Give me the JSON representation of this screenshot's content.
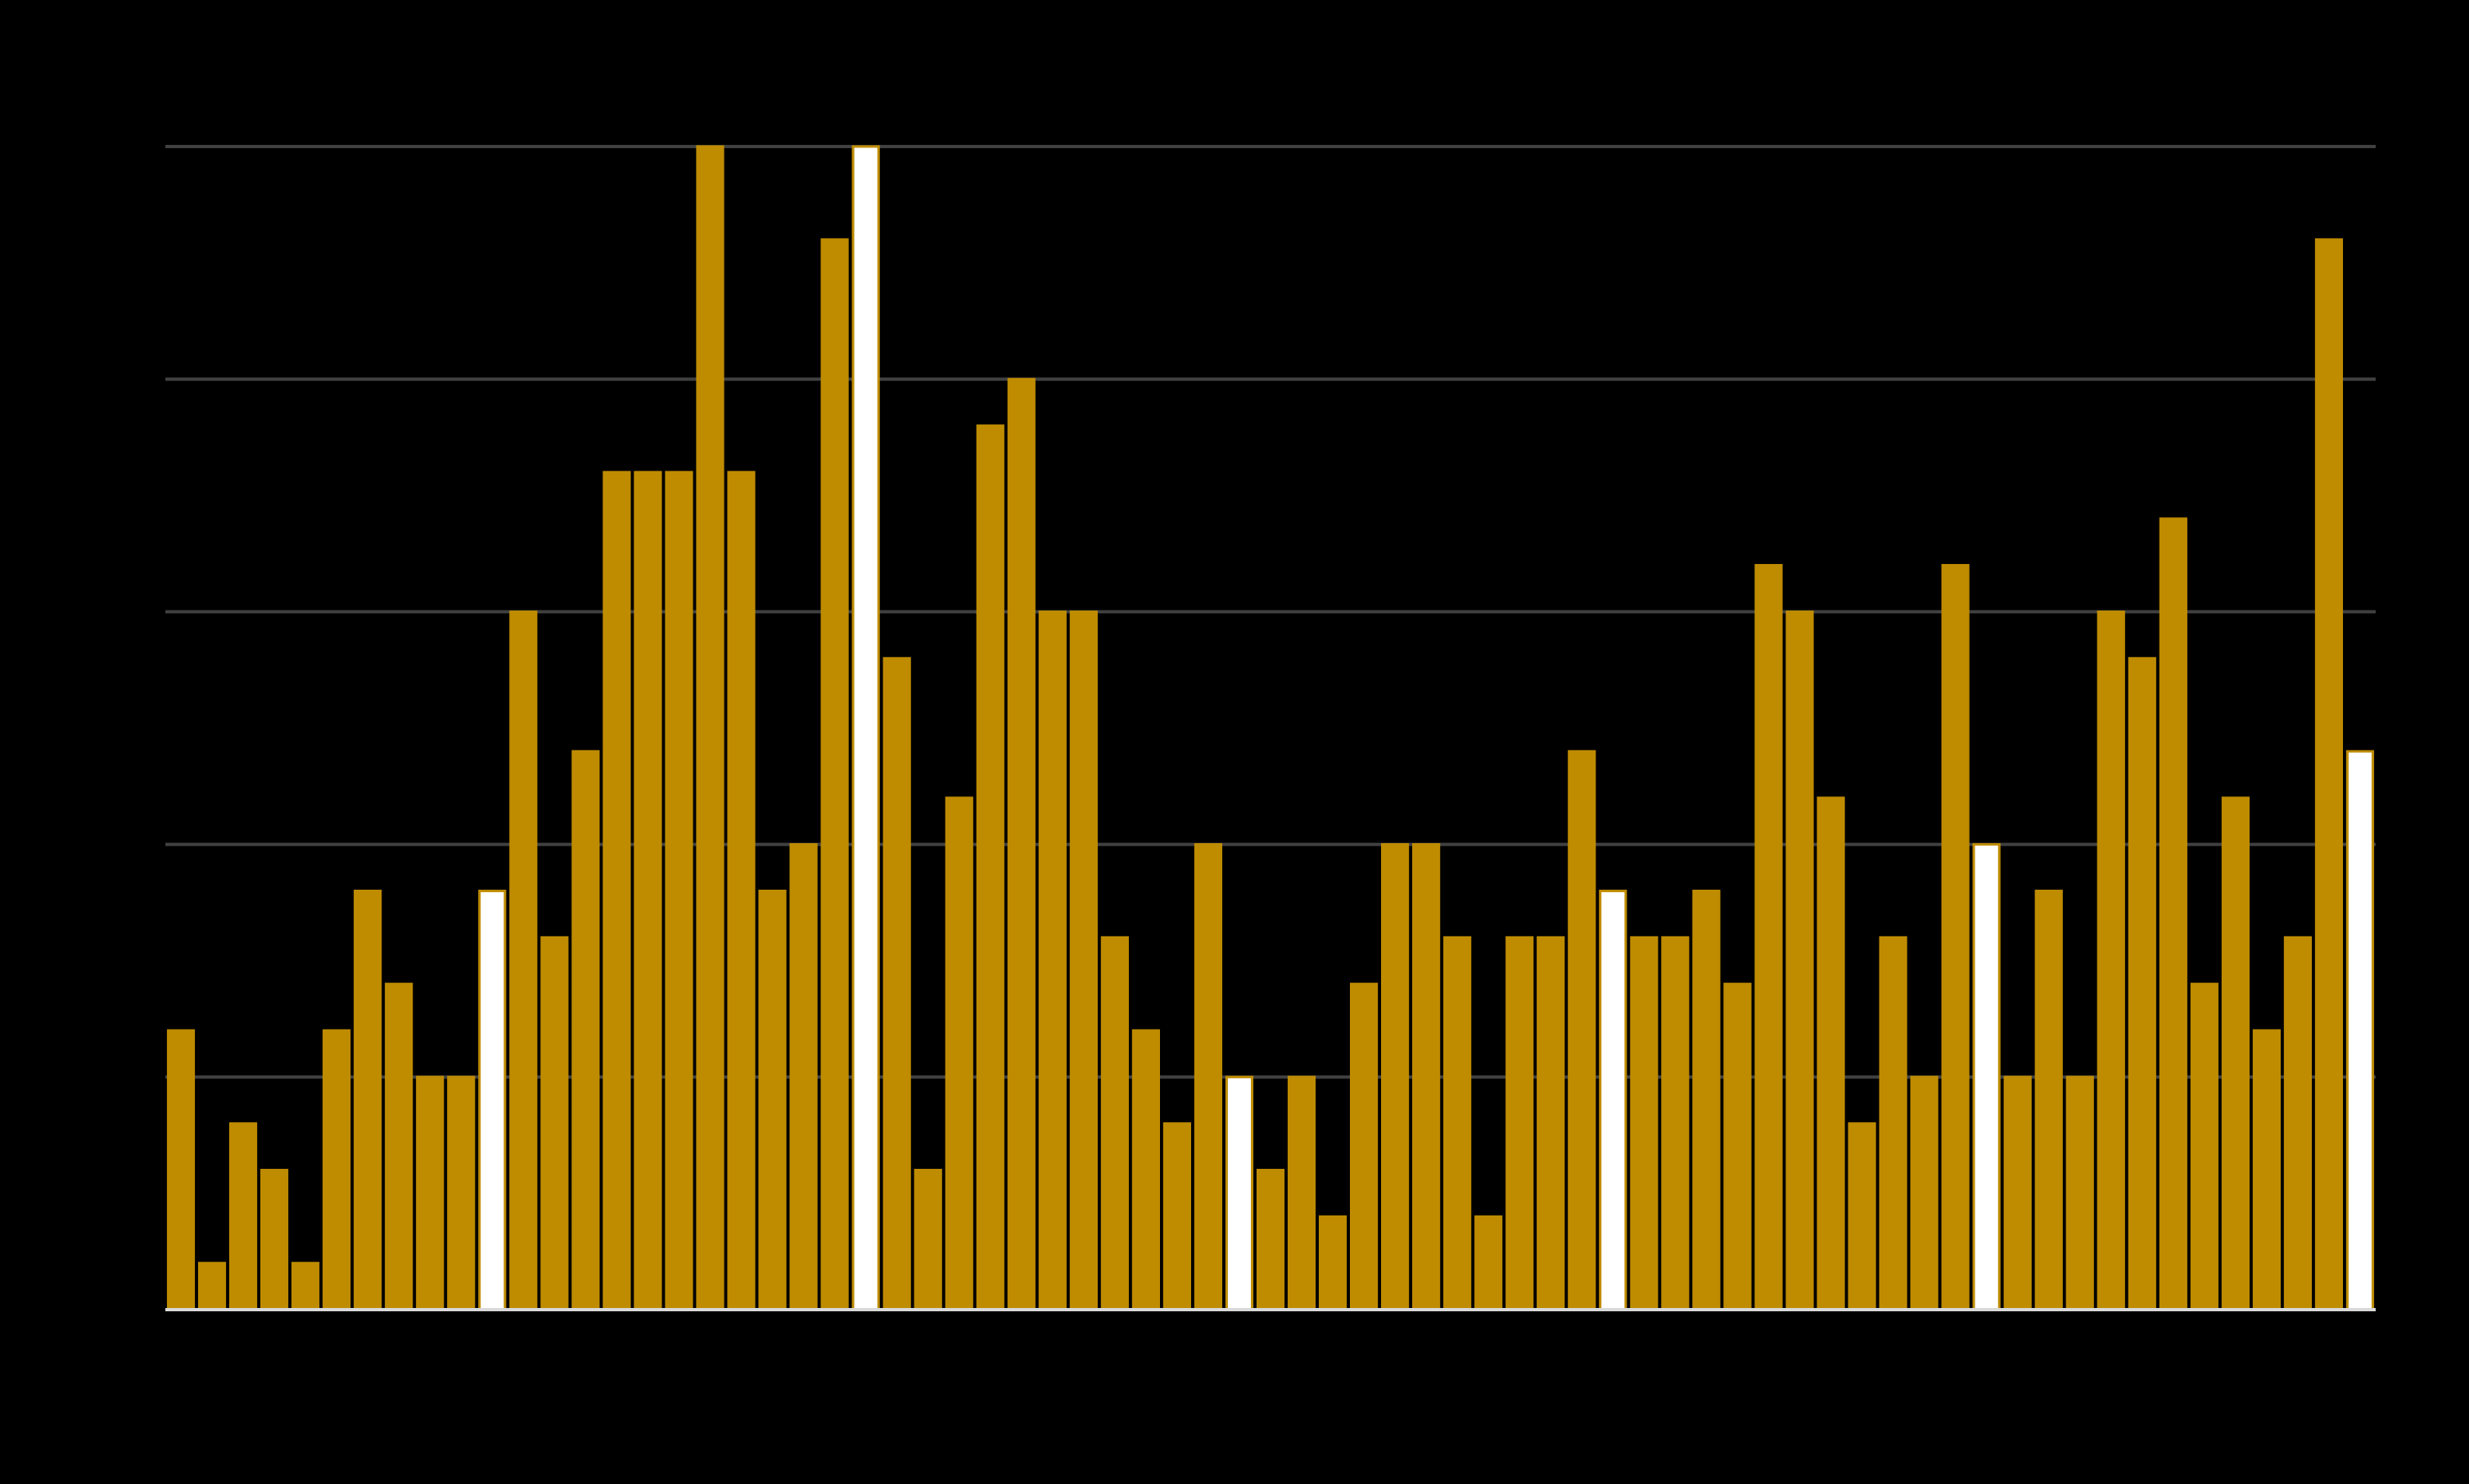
{
  "chart_data": {
    "type": "bar",
    "values": [
      6,
      1,
      4,
      3,
      1,
      6,
      9,
      7,
      5,
      5,
      9,
      15,
      8,
      12,
      18,
      18,
      18,
      25,
      18,
      9,
      10,
      23,
      25,
      14,
      3,
      11,
      19,
      20,
      15,
      15,
      8,
      6,
      4,
      10,
      5,
      3,
      5,
      2,
      7,
      10,
      10,
      8,
      2,
      8,
      8,
      12,
      9,
      8,
      8,
      9,
      7,
      16,
      15,
      11,
      4,
      8,
      5,
      16,
      10,
      5,
      9,
      5,
      15,
      14,
      17,
      7,
      11,
      6,
      8,
      23,
      12
    ],
    "colors": [
      "#bf8c00",
      "#bf8c00",
      "#bf8c00",
      "#bf8c00",
      "#bf8c00",
      "#bf8c00",
      "#bf8c00",
      "#bf8c00",
      "#bf8c00",
      "#bf8c00",
      "#ffffff",
      "#bf8c00",
      "#bf8c00",
      "#bf8c00",
      "#bf8c00",
      "#bf8c00",
      "#bf8c00",
      "#bf8c00",
      "#bf8c00",
      "#bf8c00",
      "#bf8c00",
      "#bf8c00",
      "#ffffff",
      "#bf8c00",
      "#bf8c00",
      "#bf8c00",
      "#bf8c00",
      "#bf8c00",
      "#bf8c00",
      "#bf8c00",
      "#bf8c00",
      "#bf8c00",
      "#bf8c00",
      "#bf8c00",
      "#ffffff",
      "#bf8c00",
      "#bf8c00",
      "#bf8c00",
      "#bf8c00",
      "#bf8c00",
      "#bf8c00",
      "#bf8c00",
      "#bf8c00",
      "#bf8c00",
      "#bf8c00",
      "#bf8c00",
      "#ffffff",
      "#bf8c00",
      "#bf8c00",
      "#bf8c00",
      "#bf8c00",
      "#bf8c00",
      "#bf8c00",
      "#bf8c00",
      "#bf8c00",
      "#bf8c00",
      "#bf8c00",
      "#bf8c00",
      "#ffffff",
      "#bf8c00",
      "#bf8c00",
      "#bf8c00",
      "#bf8c00",
      "#bf8c00",
      "#bf8c00",
      "#bf8c00",
      "#bf8c00",
      "#bf8c00",
      "#bf8c00",
      "#bf8c00",
      "#ffffff"
    ],
    "ylim": [
      0,
      25
    ],
    "yticks": [
      0,
      5,
      10,
      15,
      20,
      25
    ],
    "grid": true
  }
}
